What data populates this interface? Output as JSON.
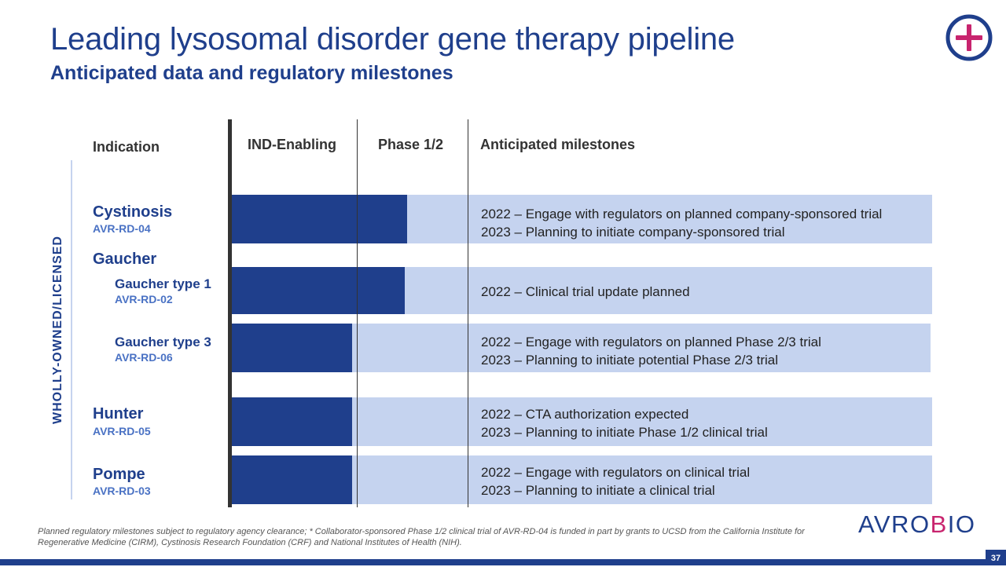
{
  "title": "Leading lysosomal disorder gene therapy pipeline",
  "subtitle": "Anticipated data and regulatory milestones",
  "columns": {
    "indication": "Indication",
    "ind_enabling": "IND-Enabling",
    "phase": "Phase 1/2",
    "milestones": "Anticipated milestones"
  },
  "side_label": "WHOLLY-OWNED/LICENSED",
  "group": "Gaucher",
  "programs": [
    {
      "name": "Cystinosis",
      "code": "AVR-RD-04",
      "progress": 0.73,
      "milestones": [
        "2022 – Engage with regulators on planned company-sponsored trial",
        "2023 – Planning to initiate company-sponsored trial"
      ]
    },
    {
      "name": "Gaucher type 1",
      "code": "AVR-RD-02",
      "progress": 0.72,
      "milestones": [
        "2022 –  Clinical trial update planned"
      ]
    },
    {
      "name": "Gaucher type 3",
      "code": "AVR-RD-06",
      "progress": 0.5,
      "milestones": [
        "2022 –  Engage with regulators on planned Phase 2/3 trial",
        "2023 –  Planning to initiate potential Phase 2/3 trial"
      ]
    },
    {
      "name": "Hunter",
      "code": "AVR-RD-05",
      "progress": 0.5,
      "milestones": [
        "2022 –  CTA authorization expected",
        "2023 –  Planning to initiate Phase 1/2 clinical trial"
      ]
    },
    {
      "name": "Pompe",
      "code": "AVR-RD-03",
      "progress": 0.5,
      "milestones": [
        "2022 –  Engage with regulators on clinical trial",
        "2023 –  Planning to initiate a clinical trial"
      ]
    }
  ],
  "footnote": "Planned regulatory milestones subject to regulatory agency clearance; * Collaborator-sponsored Phase 1/2 clinical trial of AVR-RD-04 is funded in part by grants to UCSD from the California Institute for Regenerative Medicine (CIRM), Cystinosis Research Foundation (CRF) and National Institutes of Health (NIH).",
  "brand": "AVROBIO",
  "page_number": "37",
  "colors": {
    "primary": "#1f3f8c",
    "track": "#c5d3ef",
    "accent": "#c8246e"
  }
}
